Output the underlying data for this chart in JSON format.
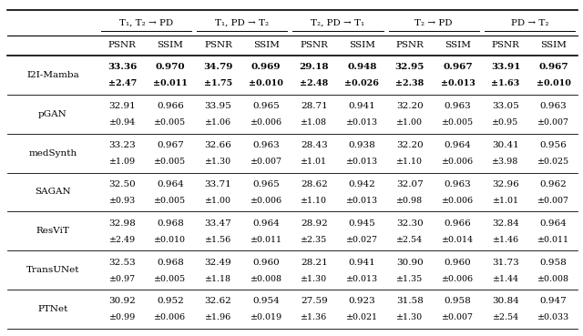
{
  "col_groups": [
    {
      "label": "T₁, T₂ → PD"
    },
    {
      "label": "T₁, PD → T₂"
    },
    {
      "label": "T₂, PD → T₁"
    },
    {
      "label": "T₂ → PD"
    },
    {
      "label": "PD → T₂"
    }
  ],
  "methods": [
    "I2I-Mamba",
    "pGAN",
    "medSynth",
    "SAGAN",
    "ResViT",
    "TransUNet",
    "PTNet"
  ],
  "rows": [
    {
      "method": "I2I-Mamba",
      "bold": true,
      "values": [
        [
          "33.36",
          "0.970",
          "34.79",
          "0.969",
          "29.18",
          "0.948",
          "32.95",
          "0.967",
          "33.91",
          "0.967"
        ],
        [
          "±2.47",
          "±0.011",
          "±1.75",
          "±0.010",
          "±2.48",
          "±0.026",
          "±2.38",
          "±0.013",
          "±1.63",
          "±0.010"
        ]
      ]
    },
    {
      "method": "pGAN",
      "bold": false,
      "values": [
        [
          "32.91",
          "0.966",
          "33.95",
          "0.965",
          "28.71",
          "0.941",
          "32.20",
          "0.963",
          "33.05",
          "0.963"
        ],
        [
          "±0.94",
          "±0.005",
          "±1.06",
          "±0.006",
          "±1.08",
          "±0.013",
          "±1.00",
          "±0.005",
          "±0.95",
          "±0.007"
        ]
      ]
    },
    {
      "method": "medSynth",
      "bold": false,
      "values": [
        [
          "33.23",
          "0.967",
          "32.66",
          "0.963",
          "28.43",
          "0.938",
          "32.20",
          "0.964",
          "30.41",
          "0.956"
        ],
        [
          "±1.09",
          "±0.005",
          "±1.30",
          "±0.007",
          "±1.01",
          "±0.013",
          "±1.10",
          "±0.006",
          "±3.98",
          "±0.025"
        ]
      ]
    },
    {
      "method": "SAGAN",
      "bold": false,
      "values": [
        [
          "32.50",
          "0.964",
          "33.71",
          "0.965",
          "28.62",
          "0.942",
          "32.07",
          "0.963",
          "32.96",
          "0.962"
        ],
        [
          "±0.93",
          "±0.005",
          "±1.00",
          "±0.006",
          "±1.10",
          "±0.013",
          "±0.98",
          "±0.006",
          "±1.01",
          "±0.007"
        ]
      ]
    },
    {
      "method": "ResViT",
      "bold": false,
      "values": [
        [
          "32.98",
          "0.968",
          "33.47",
          "0.964",
          "28.92",
          "0.945",
          "32.30",
          "0.966",
          "32.84",
          "0.964"
        ],
        [
          "±2.49",
          "±0.010",
          "±1.56",
          "±0.011",
          "±2.35",
          "±0.027",
          "±2.54",
          "±0.014",
          "±1.46",
          "±0.011"
        ]
      ]
    },
    {
      "method": "TransUNet",
      "bold": false,
      "values": [
        [
          "32.53",
          "0.968",
          "32.49",
          "0.960",
          "28.21",
          "0.941",
          "30.90",
          "0.960",
          "31.73",
          "0.958"
        ],
        [
          "±0.97",
          "±0.005",
          "±1.18",
          "±0.008",
          "±1.30",
          "±0.013",
          "±1.35",
          "±0.006",
          "±1.44",
          "±0.008"
        ]
      ]
    },
    {
      "method": "PTNet",
      "bold": false,
      "values": [
        [
          "30.92",
          "0.952",
          "32.62",
          "0.954",
          "27.59",
          "0.923",
          "31.58",
          "0.958",
          "30.84",
          "0.947"
        ],
        [
          "±0.99",
          "±0.006",
          "±1.96",
          "±0.019",
          "±1.36",
          "±0.021",
          "±1.30",
          "±0.007",
          "±2.54",
          "±0.033"
        ]
      ]
    }
  ]
}
